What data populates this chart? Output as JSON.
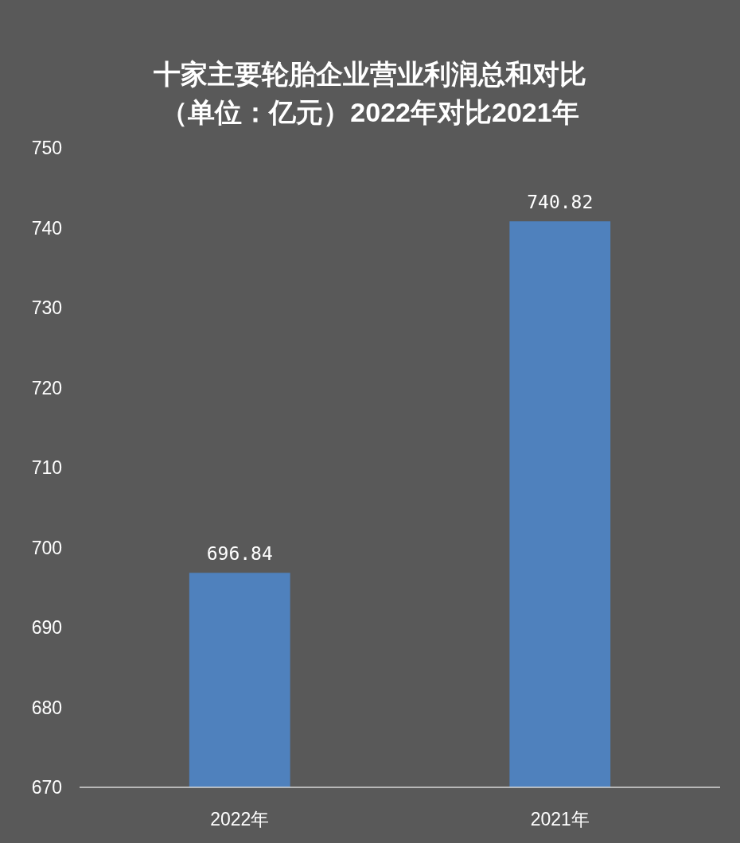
{
  "chart_data": {
    "type": "bar",
    "title": "十家主要轮胎企业营业利润总和对比",
    "subtitle": "（单位：亿元）2022年对比2021年",
    "categories": [
      "2022年",
      "2021年"
    ],
    "values": [
      696.84,
      740.82
    ],
    "color": "#4f81bd",
    "ylim": [
      670,
      750
    ],
    "yticks": [
      670,
      680,
      690,
      700,
      710,
      720,
      730,
      740,
      750
    ],
    "grid": false,
    "data_labels": true
  }
}
